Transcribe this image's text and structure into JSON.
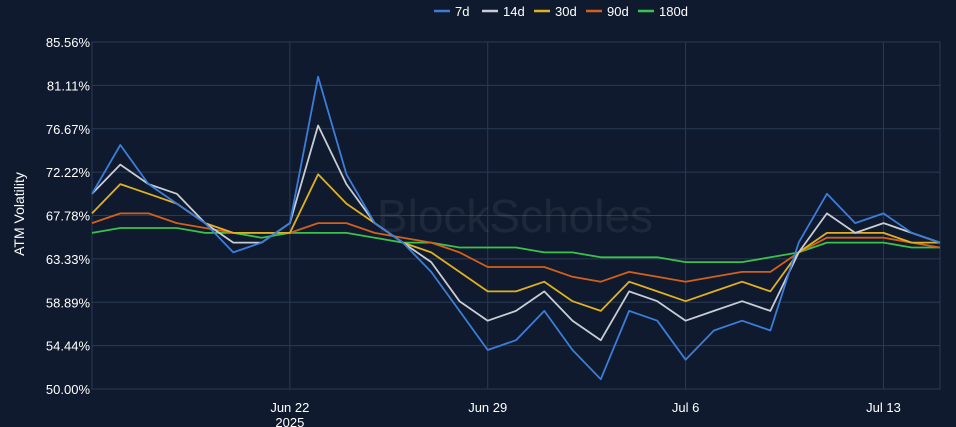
{
  "colors": {
    "background": "#0f1a2e",
    "grid": "#2a3a55",
    "text": "#ffffff"
  },
  "watermark": "BlockScholes",
  "chart_data": {
    "type": "line",
    "ylabel": "ATM Volatility",
    "xlabel": "",
    "title": "",
    "legend_position": "top-center",
    "grid": true,
    "ylim": [
      50.0,
      85.56
    ],
    "xlim": [
      "2025-06-15",
      "2025-07-15"
    ],
    "y_ticks": [
      "50.00%",
      "54.44%",
      "58.89%",
      "63.33%",
      "67.78%",
      "72.22%",
      "76.67%",
      "81.11%",
      "85.56%"
    ],
    "y_tick_values": [
      50.0,
      54.44,
      58.89,
      63.33,
      67.78,
      72.22,
      76.67,
      81.11,
      85.56
    ],
    "x_ticks": [
      {
        "date": "2025-06-22",
        "label": "Jun 22",
        "sublabel": "2025"
      },
      {
        "date": "2025-06-29",
        "label": "Jun 29",
        "sublabel": ""
      },
      {
        "date": "2025-07-06",
        "label": "Jul 6",
        "sublabel": ""
      },
      {
        "date": "2025-07-13",
        "label": "Jul 13",
        "sublabel": ""
      }
    ],
    "x": [
      "2025-06-15",
      "2025-06-16",
      "2025-06-17",
      "2025-06-18",
      "2025-06-19",
      "2025-06-20",
      "2025-06-21",
      "2025-06-22",
      "2025-06-23",
      "2025-06-24",
      "2025-06-25",
      "2025-06-26",
      "2025-06-27",
      "2025-06-28",
      "2025-06-29",
      "2025-06-30",
      "2025-07-01",
      "2025-07-02",
      "2025-07-03",
      "2025-07-04",
      "2025-07-05",
      "2025-07-06",
      "2025-07-07",
      "2025-07-08",
      "2025-07-09",
      "2025-07-10",
      "2025-07-11",
      "2025-07-12",
      "2025-07-13",
      "2025-07-14",
      "2025-07-15"
    ],
    "series": [
      {
        "name": "7d",
        "color": "#3b7dd8",
        "values": [
          70,
          75,
          71,
          69,
          67,
          64,
          65,
          67,
          82,
          72,
          67,
          65,
          62,
          58,
          54,
          55,
          58,
          54,
          51,
          58,
          57,
          53,
          56,
          57,
          56,
          65,
          70,
          67,
          68,
          66,
          65
        ]
      },
      {
        "name": "14d",
        "color": "#c8ccd4",
        "values": [
          70,
          73,
          71,
          70,
          67,
          65,
          65,
          67,
          77,
          71,
          67,
          65,
          63,
          59,
          57,
          58,
          60,
          57,
          55,
          60,
          59,
          57,
          58,
          59,
          58,
          64,
          68,
          66,
          67,
          66,
          65
        ]
      },
      {
        "name": "30d",
        "color": "#e0b020",
        "values": [
          68,
          71,
          70,
          69,
          67,
          66,
          66,
          66,
          72,
          69,
          67,
          65,
          64,
          62,
          60,
          60,
          61,
          59,
          58,
          61,
          60,
          59,
          60,
          61,
          60,
          64,
          66,
          66,
          66,
          65,
          65
        ]
      },
      {
        "name": "90d",
        "color": "#d2601a",
        "values": [
          67,
          68,
          68,
          67,
          66.5,
          66,
          66,
          66,
          67,
          67,
          66,
          65.5,
          65,
          64,
          62.5,
          62.5,
          62.5,
          61.5,
          61,
          62,
          61.5,
          61,
          61.5,
          62,
          62,
          64,
          65.5,
          65.5,
          65.5,
          65,
          64.5
        ]
      },
      {
        "name": "180d",
        "color": "#3ac24a",
        "values": [
          66,
          66.5,
          66.5,
          66.5,
          66,
          66,
          65.5,
          66,
          66,
          66,
          65.5,
          65,
          65,
          64.5,
          64.5,
          64.5,
          64,
          64,
          63.5,
          63.5,
          63.5,
          63,
          63,
          63,
          63.5,
          64,
          65,
          65,
          65,
          64.5,
          64.5
        ]
      }
    ]
  }
}
